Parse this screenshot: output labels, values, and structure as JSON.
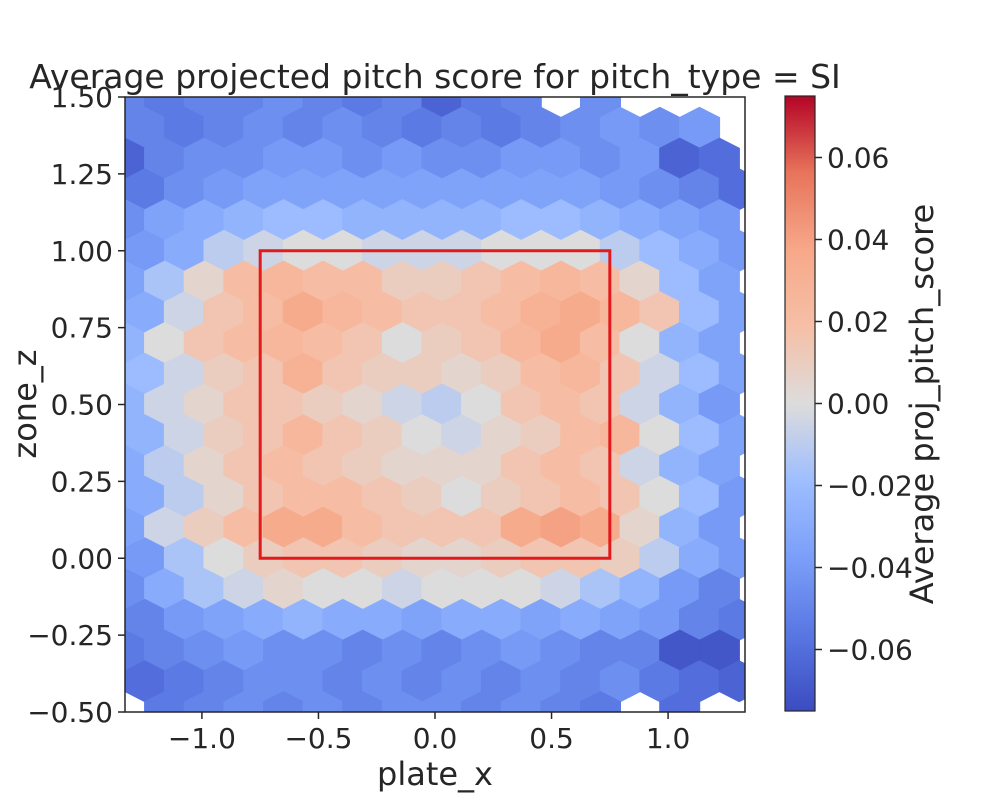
{
  "chart_data": {
    "type": "heatmap",
    "title": "Average projected pitch score for pitch_type = SI",
    "xlabel": "plate_x",
    "ylabel": "zone_z",
    "colorbar_label": "Average proj_pitch_score",
    "xlim": [
      -1.33,
      1.33
    ],
    "ylim": [
      -0.5,
      1.5
    ],
    "x_ticks": [
      -1.0,
      -0.5,
      0.0,
      0.5,
      1.0
    ],
    "x_tick_labels": [
      "−1.0",
      "−0.5",
      "0.0",
      "0.5",
      "1.0"
    ],
    "y_ticks": [
      -0.5,
      -0.25,
      0.0,
      0.25,
      0.5,
      0.75,
      1.0,
      1.25,
      1.5
    ],
    "y_tick_labels": [
      "−0.50",
      "−0.25",
      "0.00",
      "0.25",
      "0.50",
      "0.75",
      "1.00",
      "1.25",
      "1.50"
    ],
    "colorbar_range": [
      -0.075,
      0.075
    ],
    "colorbar_ticks": [
      -0.06,
      -0.04,
      -0.02,
      0.0,
      0.02,
      0.04,
      0.06
    ],
    "colorbar_tick_labels": [
      "−0.06",
      "−0.04",
      "−0.02",
      "0.00",
      "0.02",
      "0.04",
      "0.06"
    ],
    "colormap": "coolwarm",
    "strike_zone": {
      "x": [
        -0.75,
        0.75
      ],
      "z": [
        0.0,
        1.0
      ],
      "color": "#e31a1c"
    },
    "hex_grid": {
      "x_centers_even": [
        -1.33,
        -1.16,
        -0.99,
        -0.82,
        -0.65,
        -0.48,
        -0.31,
        -0.14,
        0.03,
        0.2,
        0.37,
        0.54,
        0.71,
        0.88,
        1.05,
        1.22
      ],
      "x_centers_odd": [
        -1.245,
        -1.075,
        -0.905,
        -0.735,
        -0.565,
        -0.395,
        -0.225,
        -0.055,
        0.115,
        0.285,
        0.455,
        0.625,
        0.795,
        0.965,
        1.135,
        1.305
      ],
      "rows": [
        {
          "z": 1.5,
          "values": [
            -0.05,
            -0.055,
            -0.05,
            -0.05,
            -0.045,
            -0.05,
            -0.055,
            -0.05,
            -0.065,
            -0.055,
            -0.05,
            null,
            -0.045,
            null,
            null,
            null
          ]
        },
        {
          "z": 1.4,
          "values": [
            -0.05,
            -0.055,
            -0.05,
            -0.045,
            -0.05,
            -0.045,
            -0.05,
            -0.055,
            -0.05,
            -0.055,
            -0.05,
            -0.045,
            -0.04,
            -0.045,
            -0.04,
            null
          ]
        },
        {
          "z": 1.3,
          "values": [
            -0.065,
            -0.05,
            -0.045,
            -0.045,
            -0.04,
            -0.04,
            -0.045,
            -0.04,
            -0.045,
            -0.045,
            -0.04,
            -0.04,
            -0.045,
            -0.04,
            -0.065,
            -0.06
          ]
        },
        {
          "z": 1.2,
          "values": [
            -0.055,
            -0.045,
            -0.04,
            -0.035,
            -0.035,
            -0.035,
            -0.035,
            -0.035,
            -0.035,
            -0.035,
            -0.035,
            -0.035,
            -0.04,
            -0.045,
            -0.05,
            -0.06
          ]
        },
        {
          "z": 1.1,
          "values": [
            -0.045,
            -0.035,
            -0.03,
            -0.025,
            -0.02,
            -0.02,
            -0.025,
            -0.025,
            -0.025,
            -0.025,
            -0.02,
            -0.02,
            -0.025,
            -0.03,
            -0.035,
            -0.04
          ]
        },
        {
          "z": 1.0,
          "values": [
            -0.04,
            -0.03,
            -0.01,
            -0.005,
            0.0,
            0.0,
            -0.005,
            -0.005,
            -0.005,
            0.0,
            0.0,
            0.0,
            -0.01,
            -0.02,
            -0.03,
            -0.04
          ]
        },
        {
          "z": 0.9,
          "values": [
            -0.035,
            -0.015,
            0.005,
            0.02,
            0.025,
            0.02,
            0.02,
            0.01,
            0.01,
            0.015,
            0.02,
            0.025,
            0.02,
            0.005,
            -0.02,
            -0.035
          ]
        },
        {
          "z": 0.8,
          "values": [
            -0.03,
            -0.005,
            0.015,
            0.02,
            0.035,
            0.025,
            0.02,
            0.015,
            0.015,
            0.02,
            0.03,
            0.035,
            0.025,
            0.015,
            -0.02,
            -0.035
          ]
        },
        {
          "z": 0.7,
          "values": [
            -0.025,
            0.0,
            0.015,
            0.02,
            0.025,
            0.02,
            0.015,
            0.0,
            0.01,
            0.015,
            0.025,
            0.035,
            0.02,
            0.0,
            -0.025,
            -0.035
          ]
        },
        {
          "z": 0.6,
          "values": [
            -0.02,
            -0.005,
            0.01,
            0.015,
            0.03,
            0.015,
            0.01,
            0.01,
            0.005,
            0.01,
            0.02,
            0.025,
            0.015,
            -0.005,
            -0.02,
            -0.035
          ]
        },
        {
          "z": 0.5,
          "values": [
            -0.025,
            -0.005,
            0.005,
            0.015,
            0.015,
            0.01,
            0.005,
            -0.005,
            -0.01,
            0.0,
            0.015,
            0.02,
            0.015,
            -0.005,
            -0.025,
            -0.04
          ]
        },
        {
          "z": 0.4,
          "values": [
            -0.025,
            -0.005,
            0.01,
            0.015,
            0.025,
            0.015,
            0.01,
            0.0,
            -0.005,
            0.005,
            0.01,
            0.02,
            0.025,
            0.0,
            -0.02,
            -0.035
          ]
        },
        {
          "z": 0.3,
          "values": [
            -0.03,
            -0.01,
            0.005,
            0.015,
            0.02,
            0.015,
            0.01,
            0.005,
            0.005,
            0.005,
            0.015,
            0.02,
            0.015,
            -0.005,
            -0.025,
            -0.035
          ]
        },
        {
          "z": 0.2,
          "values": [
            -0.03,
            -0.01,
            0.005,
            0.015,
            0.02,
            0.02,
            0.015,
            0.01,
            0.0,
            0.01,
            0.015,
            0.02,
            0.015,
            0.0,
            -0.02,
            -0.04
          ]
        },
        {
          "z": 0.1,
          "values": [
            -0.035,
            -0.005,
            0.01,
            0.02,
            0.035,
            0.035,
            0.02,
            0.015,
            0.015,
            0.015,
            0.035,
            0.04,
            0.035,
            0.005,
            -0.025,
            -0.04
          ]
        },
        {
          "z": 0.0,
          "values": [
            -0.04,
            -0.015,
            0.0,
            0.01,
            0.015,
            0.015,
            0.01,
            0.005,
            0.005,
            0.01,
            0.015,
            0.015,
            0.01,
            -0.01,
            -0.03,
            -0.04
          ]
        },
        {
          "z": -0.1,
          "values": [
            -0.045,
            -0.03,
            -0.015,
            -0.005,
            0.005,
            0.0,
            0.0,
            -0.005,
            0.0,
            0.0,
            0.0,
            -0.005,
            -0.015,
            -0.025,
            -0.04,
            -0.05
          ]
        },
        {
          "z": -0.2,
          "values": [
            -0.05,
            -0.04,
            -0.035,
            -0.03,
            -0.025,
            -0.03,
            -0.03,
            -0.035,
            -0.03,
            -0.03,
            -0.035,
            -0.03,
            -0.035,
            -0.04,
            -0.05,
            -0.055
          ]
        },
        {
          "z": -0.3,
          "values": [
            -0.055,
            -0.05,
            -0.045,
            -0.04,
            -0.045,
            -0.045,
            -0.05,
            -0.045,
            -0.05,
            -0.045,
            -0.04,
            -0.045,
            -0.05,
            -0.05,
            -0.07,
            -0.07
          ]
        },
        {
          "z": -0.4,
          "values": [
            -0.06,
            -0.055,
            -0.05,
            -0.045,
            -0.045,
            -0.05,
            -0.045,
            -0.05,
            -0.045,
            -0.05,
            -0.045,
            -0.05,
            -0.045,
            -0.055,
            -0.06,
            -0.065
          ]
        },
        {
          "z": -0.5,
          "values": [
            null,
            -0.055,
            -0.05,
            -0.045,
            -0.05,
            -0.045,
            -0.05,
            -0.045,
            -0.045,
            -0.05,
            -0.045,
            -0.05,
            -0.055,
            null,
            -0.06,
            null
          ]
        }
      ]
    }
  }
}
